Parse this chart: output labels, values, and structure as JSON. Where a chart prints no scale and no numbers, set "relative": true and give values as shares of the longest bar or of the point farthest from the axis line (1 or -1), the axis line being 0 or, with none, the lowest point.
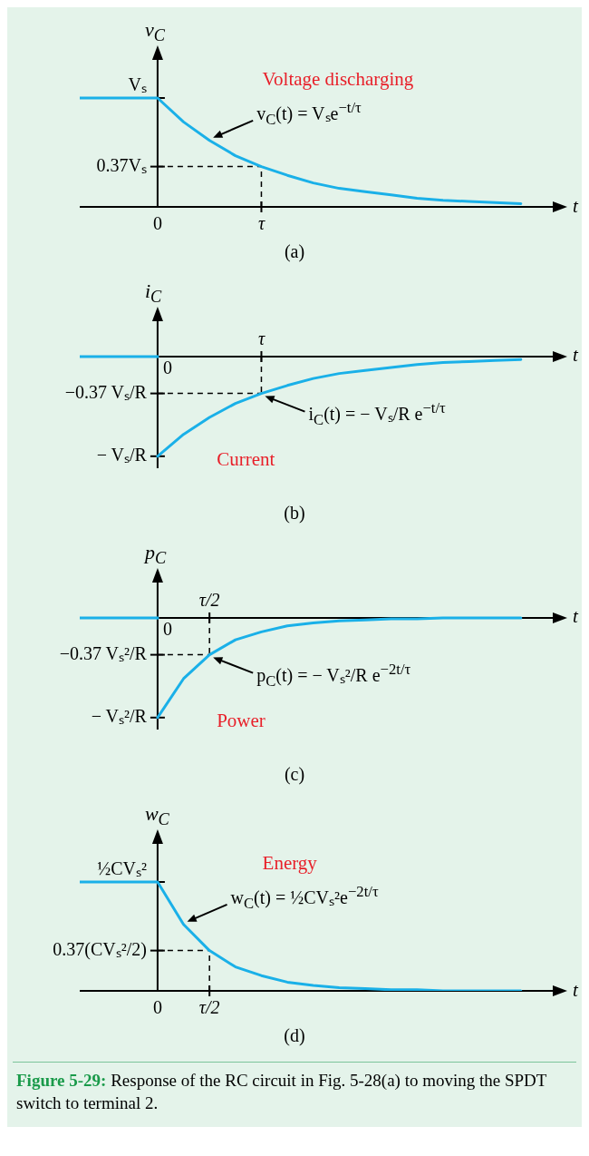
{
  "chart_data": [
    {
      "type": "line",
      "relative": true,
      "title": "(a)",
      "xlabel": "t",
      "ylabel": "v$_{C}$",
      "categories": [
        null,
        null,
        null,
        "0",
        null,
        null,
        null,
        "τ",
        null,
        null,
        null,
        null,
        null,
        null,
        null,
        null,
        null,
        null
      ],
      "series": [
        {
          "color": "#1ab0e8",
          "values": [
            1,
            1,
            1,
            1,
            0.78,
            0.61,
            0.47,
            0.37,
            0.29,
            0.22,
            0.17,
            0.14,
            0.11,
            0.08,
            0.06,
            0.05,
            0.04,
            0.03
          ]
        }
      ],
      "ref_lines": [
        {
          "axis": "y",
          "value": 0.37,
          "line_style": "dashed",
          "label": "0.37Vₛ"
        },
        {
          "axis": "x",
          "value": "τ",
          "line_style": "dashed"
        }
      ],
      "annotations": [
        "Voltage discharging",
        "v$_{C}$(t) = Vₛe$^{−t/τ}$",
        "Vₛ"
      ]
    },
    {
      "type": "line",
      "relative": true,
      "title": "(b)",
      "xlabel": "t",
      "ylabel": "i$_{C}$",
      "categories": [
        null,
        null,
        null,
        "0",
        null,
        null,
        null,
        "τ",
        null,
        null,
        null,
        null,
        null,
        null,
        null,
        null,
        null,
        null
      ],
      "series": [
        {
          "color": "#1ab0e8",
          "values": [
            0,
            0,
            0,
            0,
            null,
            null,
            null,
            null,
            null,
            null,
            null,
            null,
            null,
            null,
            null,
            null,
            null,
            null
          ]
        },
        {
          "color": "#1ab0e8",
          "values": [
            null,
            null,
            null,
            -1,
            -0.78,
            -0.61,
            -0.47,
            -0.37,
            -0.29,
            -0.22,
            -0.17,
            -0.14,
            -0.11,
            -0.08,
            -0.06,
            -0.05,
            -0.04,
            -0.03
          ]
        }
      ],
      "ref_lines": [
        {
          "axis": "y",
          "value": -0.37,
          "line_style": "dashed",
          "label": "−0.37 Vₛ/R"
        },
        {
          "axis": "x",
          "value": "τ",
          "line_style": "dashed"
        }
      ],
      "annotations": [
        "Current",
        "i$_{C}$(t) = − Vₛ/R e$^{−t/τ}$",
        "− Vₛ/R"
      ]
    },
    {
      "type": "line",
      "relative": true,
      "title": "(c)",
      "xlabel": "t",
      "ylabel": "p$_{C}$",
      "categories": [
        null,
        null,
        null,
        "0",
        null,
        "τ/2",
        null,
        null,
        null,
        null,
        null,
        null,
        null,
        null,
        null,
        null,
        null,
        null
      ],
      "series": [
        {
          "color": "#1ab0e8",
          "values": [
            0,
            0,
            0,
            0,
            null,
            null,
            null,
            null,
            null,
            null,
            null,
            null,
            null,
            null,
            null,
            null,
            null,
            null
          ]
        },
        {
          "color": "#1ab0e8",
          "values": [
            null,
            null,
            null,
            -1,
            -0.61,
            -0.37,
            -0.22,
            -0.14,
            -0.08,
            -0.05,
            -0.03,
            -0.02,
            -0.01,
            -0.01,
            0,
            0,
            0,
            0
          ]
        }
      ],
      "ref_lines": [
        {
          "axis": "y",
          "value": -0.37,
          "line_style": "dashed",
          "label": "−0.37 Vₛ²/R"
        },
        {
          "axis": "x",
          "value": "τ/2",
          "line_style": "dashed"
        }
      ],
      "annotations": [
        "Power",
        "p$_{C}$(t) = − Vₛ²/R e$^{−2t/τ}$",
        "− Vₛ²/R"
      ]
    },
    {
      "type": "line",
      "relative": true,
      "title": "(d)",
      "xlabel": "t",
      "ylabel": "w$_{C}$",
      "categories": [
        null,
        null,
        null,
        "0",
        null,
        "τ/2",
        null,
        null,
        null,
        null,
        null,
        null,
        null,
        null,
        null,
        null,
        null,
        null
      ],
      "series": [
        {
          "color": "#1ab0e8",
          "values": [
            1,
            1,
            1,
            1,
            0.61,
            0.37,
            0.22,
            0.14,
            0.08,
            0.05,
            0.03,
            0.02,
            0.01,
            0.01,
            0,
            0,
            0,
            0
          ]
        }
      ],
      "ref_lines": [
        {
          "axis": "y",
          "value": 0.37,
          "line_style": "dashed",
          "label": "0.37(CVₛ²/2)"
        },
        {
          "axis": "x",
          "value": "τ/2",
          "line_style": "dashed"
        }
      ],
      "annotations": [
        "Energy",
        "w$_{C}$(t) = ½CVₛ²e$^{−2t/τ}$",
        "½CVₛ²"
      ]
    },
    {
      "type": "other",
      "title": "Figure 5-29:",
      "annotations": [
        "Response of the RC circuit in Fig. 5-28(a) to moving the SPDT switch to terminal 2."
      ]
    }
  ]
}
